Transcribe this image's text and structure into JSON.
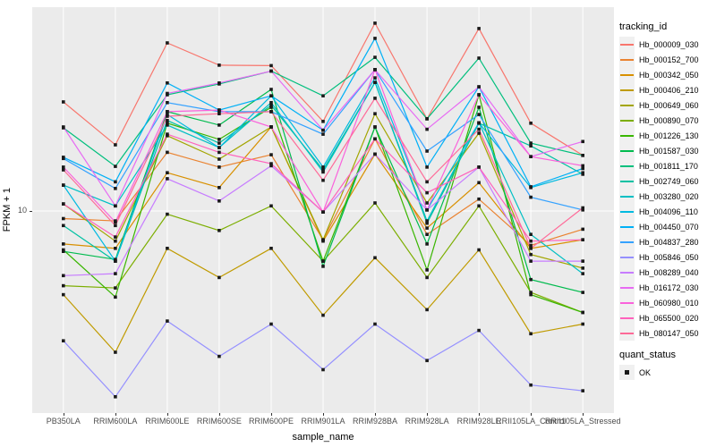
{
  "figure": {
    "background": "#FFFFFF",
    "panel_background": "#EBEBEB",
    "gridline_color": "#FFFFFF",
    "axis_text_color": "#4D4D4D",
    "point_color": "#1A1A1A",
    "legend_key_fill": "#F0F0F0"
  },
  "axes": {
    "x_title": "sample_name",
    "y_title": "FPKM + 1",
    "y_tick_label": "10"
  },
  "legend": {
    "tracking_title": "tracking_id",
    "quant_title": "quant_status",
    "quant_ok_label": "OK",
    "quant_ok_shape": "filled-black-square"
  },
  "chart_data": {
    "type": "line",
    "title": "",
    "xlabel": "sample_name",
    "ylabel": "FPKM + 1",
    "y_scale": "log10",
    "y_ticks": [
      10
    ],
    "y_range_approx": [
      1.5,
      70
    ],
    "grid": "major",
    "legend_position": "right",
    "point_marker": "black filled square at every data point (quant_status = OK)",
    "x_categories": [
      "PB350LA",
      "RRIM600LA",
      "RRIM600LE",
      "RRIM600SE",
      "RRIM600PE",
      "RRIM901LA",
      "RRIM928BA",
      "RRIM928LA",
      "RRIM928LE",
      "RRII105LA_Control",
      "RRII105LA_Stressed"
    ],
    "series": [
      {
        "name": "Hb_000009_030",
        "color": "#F8766D",
        "values": [
          28.3,
          18.8,
          49.7,
          40.2,
          40.0,
          23.5,
          60.0,
          24.1,
          57.0,
          23.1,
          17.0
        ]
      },
      {
        "name": "Hb_000152_700",
        "color": "#EA8331",
        "values": [
          9.3,
          9.1,
          17.5,
          15.2,
          17.1,
          7.6,
          19.9,
          8.0,
          11.2,
          7.2,
          8.4
        ]
      },
      {
        "name": "Hb_000342_050",
        "color": "#D89000",
        "values": [
          7.3,
          7.0,
          14.4,
          12.5,
          22.3,
          7.5,
          17.2,
          8.5,
          13.1,
          7.0,
          7.6
        ]
      },
      {
        "name": "Hb_000406_210",
        "color": "#C09B00",
        "values": [
          4.5,
          2.6,
          7.0,
          5.3,
          7.0,
          3.7,
          6.4,
          3.9,
          6.9,
          3.1,
          3.4
        ]
      },
      {
        "name": "Hb_000649_060",
        "color": "#A3A500",
        "values": [
          10.7,
          7.5,
          20.5,
          16.4,
          22.3,
          7.6,
          25.3,
          10.8,
          21.0,
          6.6,
          5.8
        ]
      },
      {
        "name": "Hb_000890_070",
        "color": "#7CAE00",
        "values": [
          4.9,
          4.8,
          9.7,
          8.3,
          10.5,
          6.2,
          10.8,
          5.3,
          10.5,
          4.6,
          3.8
        ]
      },
      {
        "name": "Hb_001226_130",
        "color": "#39B600",
        "values": [
          6.9,
          4.4,
          23.1,
          19.8,
          26.9,
          6.2,
          22.3,
          5.7,
          30.3,
          4.5,
          3.8
        ]
      },
      {
        "name": "Hb_001587_030",
        "color": "#00BB4E",
        "values": [
          6.8,
          6.3,
          25.8,
          22.7,
          31.9,
          5.9,
          22.3,
          7.3,
          26.9,
          5.2,
          4.6
        ]
      },
      {
        "name": "Hb_001811_170",
        "color": "#00BF7D",
        "values": [
          22.1,
          15.3,
          30.3,
          33.6,
          38.0,
          30.0,
          43.3,
          24.1,
          43.0,
          19.1,
          17.0
        ]
      },
      {
        "name": "Hb_002749_060",
        "color": "#00C1A3",
        "values": [
          8.7,
          6.2,
          23.7,
          19.1,
          27.4,
          14.8,
          34.1,
          8.9,
          23.1,
          18.6,
          14.2
        ]
      },
      {
        "name": "Hb_003280_020",
        "color": "#00BFC4",
        "values": [
          12.8,
          10.5,
          22.7,
          18.3,
          28.1,
          14.5,
          34.1,
          9.1,
          23.2,
          8.0,
          5.5
        ]
      },
      {
        "name": "Hb_004096_110",
        "color": "#00BAE0",
        "values": [
          12.8,
          6.2,
          25.1,
          18.3,
          30.0,
          15.2,
          35.6,
          10.1,
          23.2,
          12.5,
          14.4
        ]
      },
      {
        "name": "Hb_004450_070",
        "color": "#00B0F6",
        "values": [
          16.7,
          13.2,
          33.9,
          26.2,
          30.0,
          21.6,
          51.9,
          15.2,
          32.7,
          12.6,
          15.0
        ]
      },
      {
        "name": "Hb_004837_280",
        "color": "#35A2FF",
        "values": [
          16.5,
          12.4,
          28.1,
          25.8,
          25.8,
          20.8,
          38.5,
          17.7,
          25.1,
          11.4,
          10.1
        ]
      },
      {
        "name": "Hb_005846_050",
        "color": "#9590FF",
        "values": [
          2.9,
          1.7,
          3.5,
          2.5,
          3.4,
          2.2,
          3.4,
          2.4,
          3.2,
          1.9,
          1.8
        ]
      },
      {
        "name": "Hb_008289_040",
        "color": "#C77CFF",
        "values": [
          5.4,
          5.5,
          13.6,
          11.0,
          15.4,
          9.9,
          17.2,
          10.1,
          15.2,
          6.2,
          6.2
        ]
      },
      {
        "name": "Hb_016172_030",
        "color": "#E76BF3",
        "values": [
          22.3,
          10.5,
          30.7,
          33.9,
          38.0,
          21.6,
          38.5,
          21.8,
          32.7,
          16.8,
          19.4
        ]
      },
      {
        "name": "Hb_060980_010",
        "color": "#FA62DB",
        "values": [
          15.2,
          9.0,
          25.8,
          26.2,
          22.3,
          9.9,
          38.5,
          10.1,
          30.3,
          16.8,
          15.4
        ]
      },
      {
        "name": "Hb_065500_020",
        "color": "#FF62BC",
        "values": [
          10.7,
          7.8,
          20.8,
          17.5,
          15.7,
          9.9,
          19.9,
          11.9,
          15.2,
          7.5,
          7.6
        ]
      },
      {
        "name": "Hb_080147_050",
        "color": "#FF6A98",
        "values": [
          14.8,
          8.7,
          24.7,
          25.3,
          25.8,
          13.4,
          29.3,
          13.2,
          21.8,
          7.0,
          10.3
        ]
      }
    ]
  }
}
